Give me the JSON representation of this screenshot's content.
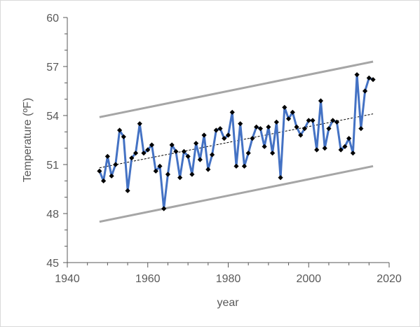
{
  "chart_data": {
    "type": "line",
    "title": "",
    "xlabel": "year",
    "ylabel": "Temperature (ºF)",
    "xlim": [
      1940,
      2020
    ],
    "ylim": [
      45,
      60
    ],
    "x_ticks": [
      1940,
      1960,
      1980,
      2000,
      2020
    ],
    "y_ticks": [
      45,
      48,
      51,
      54,
      57,
      60
    ],
    "x_minor_step": 5,
    "grid": false,
    "legend": "none",
    "colors": {
      "series": "#4472c4",
      "marker": "#000000",
      "trend": "#000000",
      "bounds": "#a6a6a6",
      "axis": "#595959"
    },
    "series": [
      {
        "x": [
          1948,
          1949,
          1950,
          1951,
          1952,
          1953,
          1954,
          1955,
          1956,
          1957,
          1958,
          1959,
          1960,
          1961,
          1962,
          1963,
          1964,
          1965,
          1966,
          1967,
          1968,
          1969,
          1970,
          1971,
          1972,
          1973,
          1974,
          1975,
          1976,
          1977,
          1978,
          1979,
          1980,
          1981,
          1982,
          1983,
          1984,
          1985,
          1986,
          1987,
          1988,
          1989,
          1990,
          1991,
          1992,
          1993,
          1994,
          1995,
          1996,
          1997,
          1998,
          1999,
          2000,
          2001,
          2002,
          2003,
          2004,
          2005,
          2006,
          2007,
          2008,
          2009,
          2010,
          2011,
          2012,
          2013,
          2014,
          2015,
          2016
        ],
        "values": [
          50.6,
          50.0,
          51.5,
          50.3,
          51.0,
          53.1,
          52.7,
          49.4,
          51.4,
          51.7,
          53.5,
          51.7,
          51.9,
          52.2,
          50.6,
          50.9,
          48.3,
          50.4,
          52.2,
          51.8,
          50.2,
          51.8,
          51.5,
          50.4,
          52.3,
          51.3,
          52.8,
          50.7,
          51.6,
          53.1,
          53.2,
          52.6,
          52.8,
          54.2,
          50.9,
          53.5,
          50.9,
          51.7,
          52.6,
          53.3,
          53.2,
          52.1,
          53.3,
          51.7,
          53.6,
          50.2,
          54.5,
          53.8,
          54.2,
          53.3,
          52.8,
          53.2,
          53.7,
          53.7,
          51.9,
          54.9,
          52.0,
          53.2,
          53.7,
          53.6,
          51.9,
          52.1,
          52.6,
          51.7,
          56.5,
          53.2,
          55.5,
          56.3,
          56.2
        ]
      }
    ],
    "trend": {
      "x": [
        1948,
        2016
      ],
      "y": [
        50.8,
        54.1
      ]
    },
    "bounds": [
      {
        "x": [
          1948,
          2016
        ],
        "y": [
          47.5,
          50.9
        ]
      },
      {
        "x": [
          1948,
          2016
        ],
        "y": [
          53.9,
          57.3
        ]
      }
    ]
  }
}
